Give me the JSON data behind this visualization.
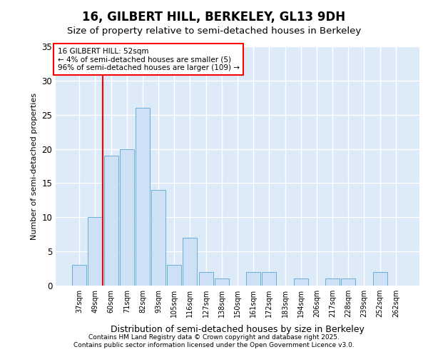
{
  "title1": "16, GILBERT HILL, BERKELEY, GL13 9DH",
  "title2": "Size of property relative to semi-detached houses in Berkeley",
  "xlabel": "Distribution of semi-detached houses by size in Berkeley",
  "ylabel": "Number of semi-detached properties",
  "categories": [
    "37sqm",
    "49sqm",
    "60sqm",
    "71sqm",
    "82sqm",
    "93sqm",
    "105sqm",
    "116sqm",
    "127sqm",
    "138sqm",
    "150sqm",
    "161sqm",
    "172sqm",
    "183sqm",
    "194sqm",
    "206sqm",
    "217sqm",
    "228sqm",
    "239sqm",
    "252sqm",
    "262sqm"
  ],
  "values": [
    3,
    10,
    19,
    20,
    26,
    14,
    3,
    7,
    2,
    1,
    0,
    2,
    2,
    0,
    1,
    0,
    1,
    1,
    0,
    2,
    0
  ],
  "bar_color": "#cde0f5",
  "bar_edge_color": "#6baed6",
  "red_line_x": 1.5,
  "ylim": [
    0,
    35
  ],
  "yticks": [
    0,
    5,
    10,
    15,
    20,
    25,
    30,
    35
  ],
  "annotation_line0": "16 GILBERT HILL: 52sqm",
  "annotation_line1": "← 4% of semi-detached houses are smaller (5)",
  "annotation_line2": "96% of semi-detached houses are larger (109) →",
  "footer1": "Contains HM Land Registry data © Crown copyright and database right 2025.",
  "footer2": "Contains public sector information licensed under the Open Government Licence v3.0.",
  "bg_color": "#ddeaf8"
}
